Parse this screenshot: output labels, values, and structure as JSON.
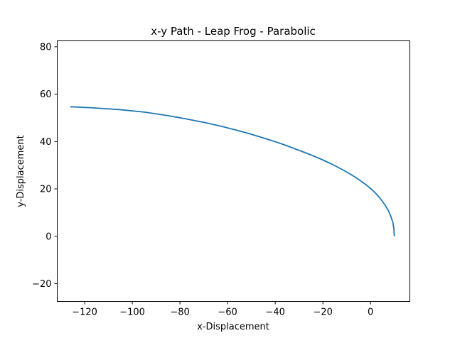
{
  "chart_data": {
    "type": "line",
    "title": "x-y Path - Leap Frog - Parabolic",
    "xlabel": "x-Displacement",
    "ylabel": "y-Displacement",
    "xlim": [
      -131.5,
      16.5
    ],
    "ylim": [
      -27.5,
      82.5
    ],
    "xticks": [
      -120,
      -100,
      -80,
      -60,
      -40,
      -20,
      0
    ],
    "xtick_labels": [
      "−120",
      "−100",
      "−80",
      "−60",
      "−40",
      "−20",
      "0"
    ],
    "yticks": [
      -20,
      0,
      20,
      40,
      60,
      80
    ],
    "ytick_labels": [
      "−20",
      "0",
      "20",
      "40",
      "60",
      "80"
    ],
    "grid": false,
    "series": [
      {
        "color": "#1f77b4",
        "x": [
          10,
          9.8,
          9.3,
          8.5,
          7.6,
          6.5,
          5.1,
          3.6,
          2.0,
          0.2,
          -1.8,
          -3.9,
          -6.2,
          -8.6,
          -11.2,
          -14.0,
          -17.0,
          -20.2,
          -23.7,
          -27.4,
          -31.4,
          -35.6,
          -40.2,
          -45.2,
          -50.5,
          -56.3,
          -62.6,
          -69.5,
          -77.1,
          -85.5,
          -94.9,
          -105.5,
          -117.9,
          -126
        ],
        "y": [
          0,
          3.3,
          6.1,
          8.5,
          10.6,
          12.5,
          14.6,
          16.5,
          18.3,
          20.0,
          21.7,
          23.2,
          24.8,
          26.3,
          27.8,
          29.3,
          30.8,
          32.3,
          33.8,
          35.3,
          36.8,
          38.4,
          40.0,
          41.6,
          43.2,
          44.8,
          46.4,
          48.0,
          49.5,
          51.0,
          52.4,
          53.5,
          54.3,
          54.7
        ]
      }
    ]
  }
}
